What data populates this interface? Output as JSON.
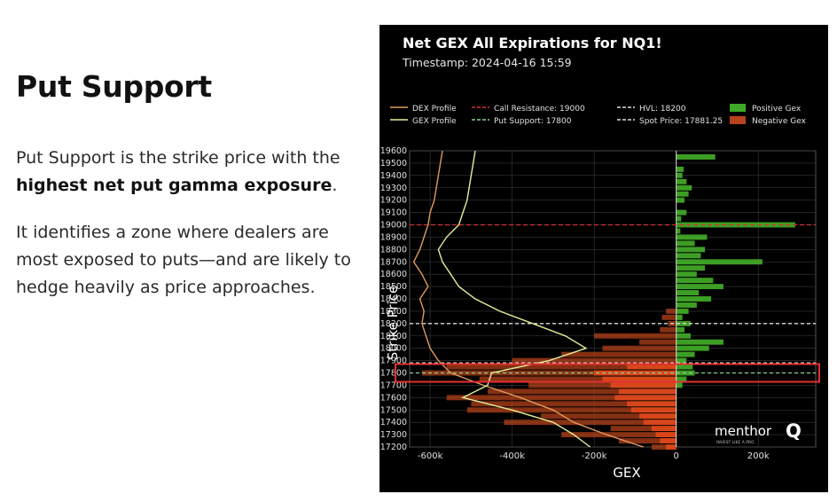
{
  "text": {
    "heading": "Put Support",
    "p1_pre": "Put Support is the strike price with the ",
    "p1_bold": "highest net put gamma exposure",
    "p1_post": ".",
    "p2": "It identifies a zone where dealers are most exposed to puts—and are likely to hedge heavily as price approaches."
  },
  "chart_data": {
    "type": "bar",
    "orientation": "horizontal",
    "title": "Net GEX All Expirations for NQ1!",
    "subtitle": "Timestamp: 2024-04-16 15:59",
    "xlabel": "GEX",
    "ylabel": "Strike Price",
    "xlim": [
      -650000,
      340000
    ],
    "ylim": [
      17200,
      19600
    ],
    "grid": true,
    "legend_position": "top",
    "xticks": [
      "-600k",
      "-400k",
      "-200k",
      "0",
      "200k"
    ],
    "xtick_values": [
      -600000,
      -400000,
      -200000,
      0,
      200000
    ],
    "ytick_step": 100,
    "colors": {
      "positive": "#3fa826",
      "negative": "#b8421b",
      "dex": "#e09a5c",
      "gex": "#e2ef9a",
      "call_line": "#d33030",
      "put_line": "#8fd08f",
      "hvl_line": "#dddddd",
      "spot_line": "#dddddd"
    },
    "legend": [
      {
        "label": "DEX Profile",
        "style": "dex"
      },
      {
        "label": "GEX Profile",
        "style": "gex"
      },
      {
        "label": "Call Resistance: 19000",
        "style": "call_line"
      },
      {
        "label": "Put Support: 17800",
        "style": "put_line"
      },
      {
        "label": "HVL: 18200",
        "style": "hvl_line"
      },
      {
        "label": "Spot Price: 17881.25",
        "style": "spot_line"
      },
      {
        "label": "Positive Gex",
        "style": "positive"
      },
      {
        "label": "Negative Gex",
        "style": "negative"
      }
    ],
    "levels": {
      "call_resistance": 19000,
      "put_support": 17800,
      "hvl": 18200,
      "spot": 17881.25
    },
    "bars": [
      [
        19550,
        95000
      ],
      [
        19450,
        18000
      ],
      [
        19400,
        15000
      ],
      [
        19350,
        25000
      ],
      [
        19300,
        38000
      ],
      [
        19250,
        30000
      ],
      [
        19200,
        20000
      ],
      [
        19100,
        25000
      ],
      [
        19050,
        12000
      ],
      [
        19000,
        290000
      ],
      [
        18950,
        10000
      ],
      [
        18900,
        75000
      ],
      [
        18850,
        45000
      ],
      [
        18800,
        70000
      ],
      [
        18750,
        60000
      ],
      [
        18700,
        210000
      ],
      [
        18650,
        70000
      ],
      [
        18600,
        50000
      ],
      [
        18550,
        90000
      ],
      [
        18500,
        115000
      ],
      [
        18450,
        55000
      ],
      [
        18400,
        85000
      ],
      [
        18350,
        50000
      ],
      [
        18300,
        30000
      ],
      [
        18250,
        15000
      ],
      [
        18200,
        35000
      ],
      [
        18150,
        20000
      ],
      [
        18100,
        35000
      ],
      [
        18050,
        115000
      ],
      [
        18000,
        80000
      ],
      [
        17950,
        45000
      ],
      [
        17900,
        20000
      ],
      [
        18300,
        -25000
      ],
      [
        18250,
        -35000
      ],
      [
        18200,
        -20000
      ],
      [
        18150,
        -40000
      ],
      [
        18100,
        -200000
      ],
      [
        18050,
        -90000
      ],
      [
        18000,
        -180000
      ],
      [
        17950,
        -280000
      ],
      [
        17900,
        -400000
      ],
      [
        17850,
        -560000
      ],
      [
        17800,
        -620000
      ],
      [
        17750,
        -480000
      ],
      [
        17700,
        -360000
      ],
      [
        17650,
        -460000
      ],
      [
        17600,
        -560000
      ],
      [
        17550,
        -500000
      ],
      [
        17500,
        -510000
      ],
      [
        17450,
        -330000
      ],
      [
        17400,
        -420000
      ],
      [
        17350,
        -160000
      ],
      [
        17300,
        -280000
      ],
      [
        17250,
        -140000
      ],
      [
        17200,
        -60000
      ],
      [
        17900,
        25000
      ],
      [
        17850,
        40000
      ],
      [
        17800,
        45000
      ],
      [
        17750,
        25000
      ],
      [
        17700,
        15000
      ]
    ],
    "negative_stack": [
      [
        17850,
        -120000
      ],
      [
        17800,
        -200000
      ],
      [
        17750,
        -180000
      ],
      [
        17700,
        -160000
      ],
      [
        17650,
        -140000
      ],
      [
        17600,
        -150000
      ],
      [
        17550,
        -120000
      ],
      [
        17500,
        -110000
      ],
      [
        17450,
        -90000
      ],
      [
        17400,
        -80000
      ],
      [
        17350,
        -60000
      ],
      [
        17300,
        -50000
      ],
      [
        17250,
        -40000
      ],
      [
        17200,
        -25000
      ]
    ],
    "dex_profile": [
      [
        19600,
        -570000
      ],
      [
        19500,
        -575000
      ],
      [
        19400,
        -580000
      ],
      [
        19300,
        -585000
      ],
      [
        19200,
        -590000
      ],
      [
        19100,
        -600000
      ],
      [
        19000,
        -605000
      ],
      [
        18900,
        -615000
      ],
      [
        18800,
        -625000
      ],
      [
        18700,
        -640000
      ],
      [
        18600,
        -620000
      ],
      [
        18500,
        -605000
      ],
      [
        18400,
        -625000
      ],
      [
        18300,
        -615000
      ],
      [
        18200,
        -620000
      ],
      [
        18100,
        -610000
      ],
      [
        18000,
        -600000
      ],
      [
        17900,
        -580000
      ],
      [
        17800,
        -550000
      ],
      [
        17700,
        -470000
      ],
      [
        17600,
        -380000
      ],
      [
        17500,
        -300000
      ],
      [
        17400,
        -250000
      ],
      [
        17300,
        -170000
      ],
      [
        17200,
        -80000
      ]
    ],
    "gex_profile": [
      [
        19600,
        -490000
      ],
      [
        19500,
        -495000
      ],
      [
        19400,
        -500000
      ],
      [
        19300,
        -505000
      ],
      [
        19200,
        -510000
      ],
      [
        19100,
        -520000
      ],
      [
        19000,
        -530000
      ],
      [
        18900,
        -560000
      ],
      [
        18800,
        -580000
      ],
      [
        18700,
        -570000
      ],
      [
        18600,
        -550000
      ],
      [
        18500,
        -530000
      ],
      [
        18400,
        -490000
      ],
      [
        18300,
        -430000
      ],
      [
        18200,
        -350000
      ],
      [
        18100,
        -270000
      ],
      [
        18000,
        -220000
      ],
      [
        17900,
        -310000
      ],
      [
        17800,
        -450000
      ],
      [
        17700,
        -460000
      ],
      [
        17600,
        -520000
      ],
      [
        17500,
        -400000
      ],
      [
        17400,
        -300000
      ],
      [
        17300,
        -250000
      ],
      [
        17200,
        -210000
      ]
    ],
    "watermark": {
      "brand": "menthor",
      "mark": "Q",
      "tagline": "INVEST LIKE A PRO"
    }
  }
}
